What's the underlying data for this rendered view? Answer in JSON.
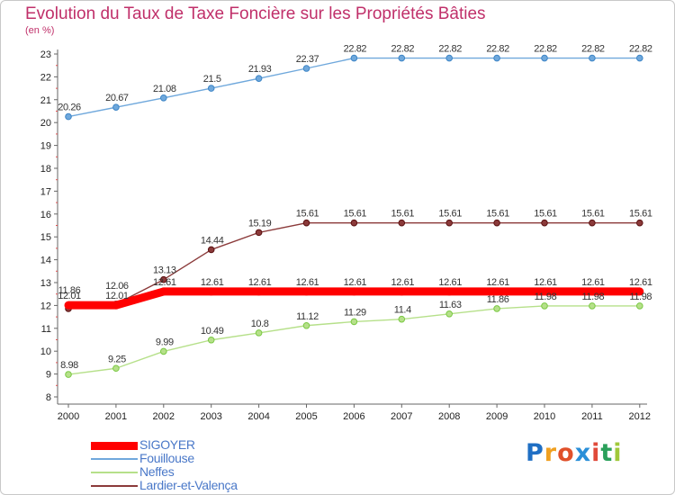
{
  "chart_data": {
    "type": "line",
    "title": "Evolution du Taux de Taxe Foncière sur les Propriétés Bâties",
    "unit_label": "(en %)",
    "x": [
      "2000",
      "2001",
      "2002",
      "2003",
      "2004",
      "2005",
      "2006",
      "2007",
      "2008",
      "2009",
      "2010",
      "2011",
      "2012"
    ],
    "ylim": [
      8,
      23
    ],
    "yticks": [
      8,
      9,
      10,
      11,
      12,
      13,
      14,
      15,
      16,
      17,
      18,
      19,
      20,
      21,
      22,
      23
    ],
    "series": [
      {
        "name": "SIGOYER",
        "color": "#ff0000",
        "emphasis": true,
        "values": [
          12.01,
          12.01,
          12.61,
          12.61,
          12.61,
          12.61,
          12.61,
          12.61,
          12.61,
          12.61,
          12.61,
          12.61,
          12.61
        ],
        "labels": [
          "12.01",
          "12.01",
          "12.61",
          "12.61",
          "12.61",
          "12.61",
          "12.61",
          "12.61",
          "12.61",
          "12.61",
          "12.61",
          "12.61",
          "12.61"
        ]
      },
      {
        "name": "Fouillouse",
        "color": "#6fa8dc",
        "marker_color": "#3d85c6",
        "values": [
          20.26,
          20.67,
          21.08,
          21.5,
          21.93,
          22.37,
          22.82,
          22.82,
          22.82,
          22.82,
          22.82,
          22.82,
          22.82
        ],
        "labels": [
          "20.26",
          "20.67",
          "21.08",
          "21.5",
          "21.93",
          "22.37",
          "22.82",
          "22.82",
          "22.82",
          "22.82",
          "22.82",
          "22.82",
          "22.82"
        ]
      },
      {
        "name": "Neffes",
        "color": "#b6e08a",
        "marker_color": "#7ac943",
        "values": [
          8.98,
          9.25,
          9.99,
          10.49,
          10.8,
          11.12,
          11.29,
          11.4,
          11.63,
          11.86,
          11.98,
          11.98,
          11.98
        ],
        "labels": [
          "8.98",
          "9.25",
          "9.99",
          "10.49",
          "10.8",
          "11.12",
          "11.29",
          "11.4",
          "11.63",
          "11.86",
          "11.98",
          "11.98",
          "11.98"
        ]
      },
      {
        "name": "Lardier-et-Valença",
        "color": "#8b3a3a",
        "marker_color": "#5a1010",
        "values": [
          11.86,
          12.06,
          13.13,
          14.44,
          15.19,
          15.61,
          15.61,
          15.61,
          15.61,
          15.61,
          15.61,
          15.61,
          15.61
        ],
        "labels": [
          "11.86",
          "12.06",
          "13.13",
          "14.44",
          "15.19",
          "15.61",
          "15.61",
          "15.61",
          "15.61",
          "15.61",
          "15.61",
          "15.61",
          "15.61"
        ]
      }
    ],
    "legend_position": "bottom-left"
  },
  "logo": {
    "letters": [
      "P",
      "r",
      "o",
      "x",
      "i",
      "t",
      "i"
    ],
    "colors": [
      "#1f6fc4",
      "#f0a020",
      "#e0502a",
      "#2a8fd8",
      "#e04a3a",
      "#2aa05a",
      "#a0c83a"
    ]
  }
}
